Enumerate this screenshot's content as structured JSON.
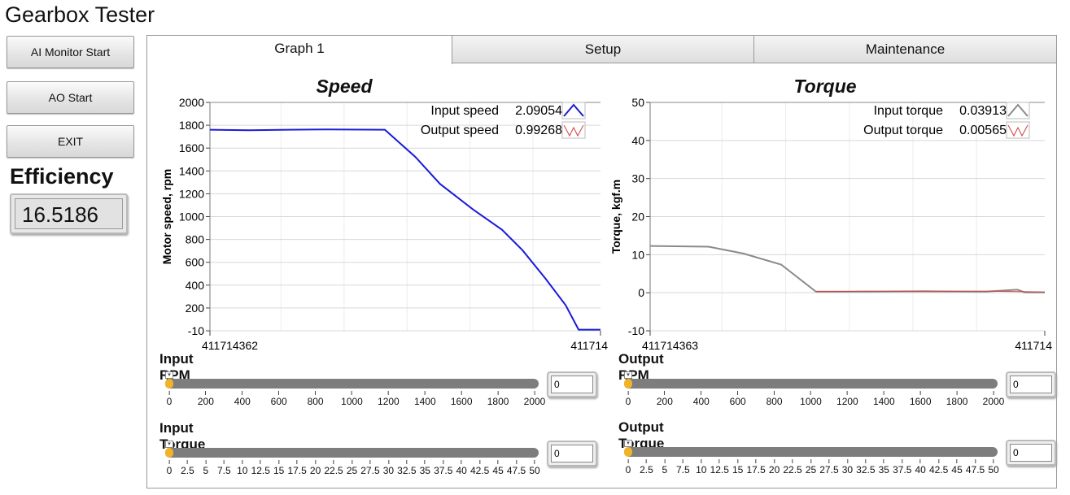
{
  "app_title": "Gearbox Tester",
  "buttons": {
    "ai_monitor": "AI Monitor Start",
    "ao_start": "AO Start",
    "exit": "EXIT"
  },
  "efficiency": {
    "label": "Efficiency",
    "value": "16.5186"
  },
  "tabs": [
    {
      "label": "Graph 1",
      "active": true
    },
    {
      "label": "Setup"
    },
    {
      "label": "Maintenance"
    }
  ],
  "colors": {
    "input_speed": "#1a1adc",
    "output_speed": "#d04040",
    "input_torque": "#8a8a8a",
    "output_torque": "#d04040",
    "slider_fill": "#f0b429"
  },
  "chart_data": [
    {
      "type": "line",
      "title": "Speed",
      "ylabel": "Motor speed, rpm",
      "xlabel": "",
      "ylim": [
        -10,
        2000
      ],
      "yticks": [
        "-10",
        "200",
        "400",
        "600",
        "800",
        "1000",
        "1200",
        "1400",
        "1600",
        "1800",
        "2000"
      ],
      "xtick_labels": [
        "411714362",
        "411714"
      ],
      "grid": true,
      "legend_placement": "top-right",
      "series": [
        {
          "name": "Input speed",
          "readout": "2.09054",
          "x": [
            0,
            10,
            20,
            30,
            44.8,
            52.6,
            58.9,
            67.4,
            74.8,
            80,
            85.9,
            91.1,
            94.4,
            100
          ],
          "y": [
            1760,
            1755,
            1760,
            1762,
            1760,
            1520,
            1283,
            1057,
            879,
            700,
            451,
            214,
            0,
            0
          ]
        },
        {
          "name": "Output speed",
          "readout": "0.99268",
          "x": [],
          "y": []
        }
      ]
    },
    {
      "type": "line",
      "title": "Torque",
      "ylabel": "Torque, kgf.m",
      "xlabel": "",
      "ylim": [
        -10,
        50
      ],
      "yticks": [
        "-10",
        "0",
        "10",
        "20",
        "30",
        "40",
        "50"
      ],
      "xtick_labels": [
        "411714363",
        "411714"
      ],
      "grid": true,
      "legend_placement": "top-right",
      "series": [
        {
          "name": "Input torque",
          "readout": "0.03913",
          "x": [
            0,
            14.8,
            23.6,
            33.2,
            42,
            55,
            70,
            85,
            93,
            95,
            100
          ],
          "y": [
            12.3,
            12.1,
            10.3,
            7.4,
            0.3,
            0.3,
            0.4,
            0.3,
            0.8,
            0.1,
            0.1
          ]
        },
        {
          "name": "Output torque",
          "readout": "0.00565",
          "x": [
            42,
            55,
            70,
            85,
            100
          ],
          "y": [
            0.3,
            0.4,
            0.3,
            0.4,
            0.2
          ]
        }
      ]
    }
  ],
  "sliders": {
    "input_rpm": {
      "label": "Input RPM",
      "value": 0,
      "max": 2000,
      "display": "0",
      "ticks": [
        "0",
        "200",
        "400",
        "600",
        "800",
        "1000",
        "1200",
        "1400",
        "1600",
        "1800",
        "2000"
      ]
    },
    "input_torque": {
      "label": "Input Torque",
      "value": 0,
      "max": 50,
      "display": "0",
      "ticks": [
        "0",
        "2.5",
        "5",
        "7.5",
        "10",
        "12.5",
        "15",
        "17.5",
        "20",
        "22.5",
        "25",
        "27.5",
        "30",
        "32.5",
        "35",
        "37.5",
        "40",
        "42.5",
        "45",
        "47.5",
        "50"
      ]
    },
    "output_rpm": {
      "label": "Output RPM",
      "value": 0,
      "max": 2000,
      "display": "0",
      "ticks": [
        "0",
        "200",
        "400",
        "600",
        "800",
        "1000",
        "1200",
        "1400",
        "1600",
        "1800",
        "2000"
      ]
    },
    "output_torque": {
      "label": "Output Torque",
      "value": 0,
      "max": 50,
      "display": "0",
      "ticks": [
        "0",
        "2.5",
        "5",
        "7.5",
        "10",
        "12.5",
        "15",
        "17.5",
        "20",
        "22.5",
        "25",
        "27.5",
        "30",
        "32.5",
        "35",
        "37.5",
        "40",
        "42.5",
        "45",
        "47.5",
        "50"
      ]
    }
  }
}
